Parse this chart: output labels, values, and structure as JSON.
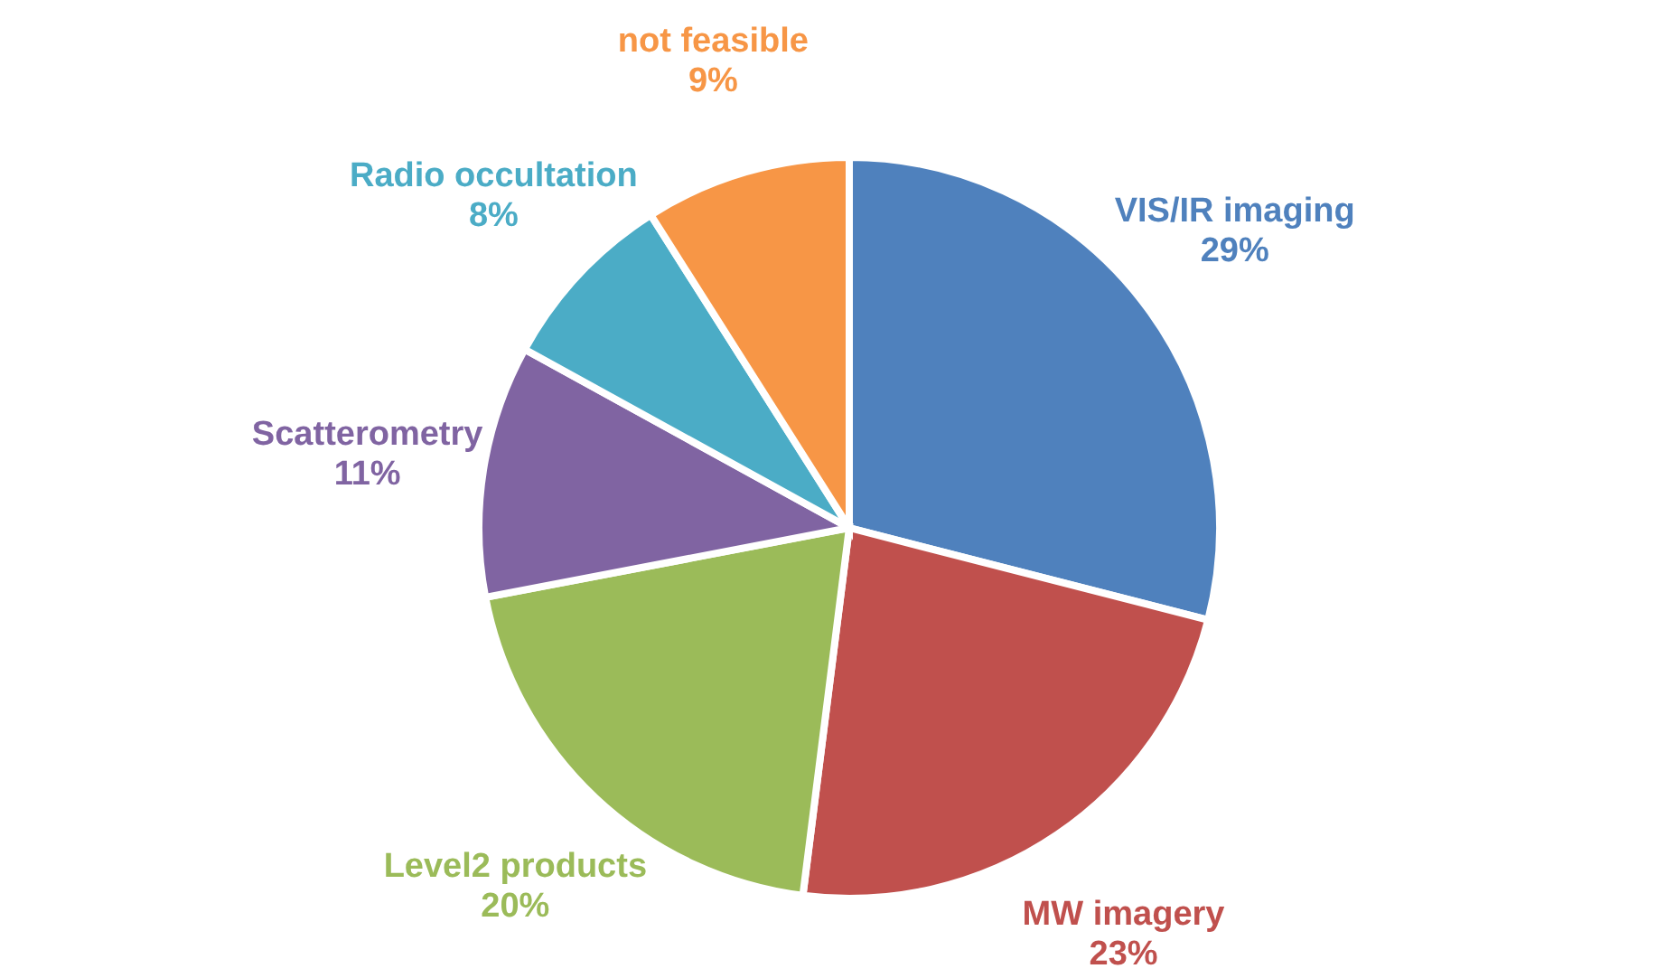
{
  "chart_data": {
    "type": "pie",
    "categories": [
      "VIS/IR imaging",
      "MW imagery",
      "Level2 products",
      "Scatterometry",
      "Radio occultation",
      "not feasible"
    ],
    "values": [
      29,
      23,
      20,
      11,
      8,
      9
    ],
    "value_labels": [
      "29%",
      "23%",
      "20%",
      "11%",
      "8%",
      "9%"
    ],
    "colors": [
      "#4f81bd",
      "#c0504d",
      "#9bbb59",
      "#8064a2",
      "#4bacc6",
      "#f79646"
    ]
  }
}
